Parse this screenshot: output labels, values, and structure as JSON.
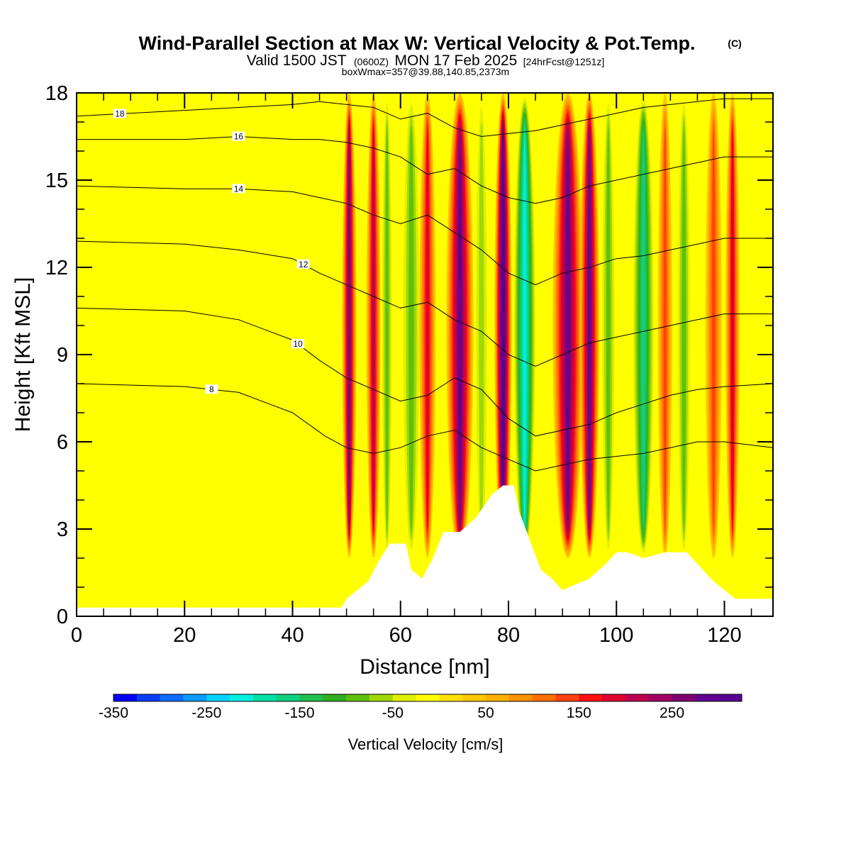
{
  "chart_data": {
    "type": "heatmap",
    "title": "Wind-Parallel Section at Max W: Vertical Velocity & Pot.Temp.",
    "title_suffix": "(C)",
    "subtitle": {
      "valid": "Valid 1500 JST",
      "zulu": "(0600Z)",
      "date": "MON 17 Feb 2025",
      "fcst": "[24hrFcst@1251z]"
    },
    "note": "boxWmax=357@39.88,140.85,2373m",
    "xlabel": "Distance [nm]",
    "ylabel": "Height [Kft MSL]",
    "xlim": [
      0,
      129
    ],
    "ylim": [
      0,
      18
    ],
    "xticks": [
      0,
      20,
      40,
      60,
      80,
      100,
      120
    ],
    "yticks": [
      0,
      3,
      6,
      9,
      12,
      15,
      18
    ],
    "colorbar": {
      "label": "Vertical Velocity [cm/s]",
      "ticks": [
        -350,
        -250,
        -150,
        -50,
        50,
        150,
        250
      ],
      "min": -350,
      "max": 325,
      "step": 25,
      "colors": [
        "#0000ff",
        "#0a3cff",
        "#0d6dff",
        "#0a9bff",
        "#00d2ff",
        "#00f0e0",
        "#00e0a8",
        "#10d080",
        "#20c050",
        "#30b020",
        "#60c010",
        "#a0d800",
        "#e0f000",
        "#ffff00",
        "#ffe000",
        "#ffc800",
        "#ffb000",
        "#ff9000",
        "#ff7000",
        "#ff4010",
        "#ff1010",
        "#e00030",
        "#c00050",
        "#a00060",
        "#800070",
        "#600090",
        "#5a0090"
      ]
    },
    "velocity_bands": [
      {
        "x": 50.5,
        "w": 250,
        "width": 1.3
      },
      {
        "x": 55,
        "w": 200,
        "width": 1.3
      },
      {
        "x": 57.5,
        "w": -100,
        "width": 1.2
      },
      {
        "x": 62,
        "w": -100,
        "width": 2
      },
      {
        "x": 65,
        "w": 175,
        "width": 1.5
      },
      {
        "x": 71,
        "w": 275,
        "width": 2.5
      },
      {
        "x": 75,
        "w": -75,
        "width": 1.5
      },
      {
        "x": 79,
        "w": 325,
        "width": 1.6
      },
      {
        "x": 83,
        "w": -225,
        "width": 2.2
      },
      {
        "x": 91,
        "w": 275,
        "width": 2.8
      },
      {
        "x": 95,
        "w": 275,
        "width": 1.8
      },
      {
        "x": 98.5,
        "w": -100,
        "width": 1.5
      },
      {
        "x": 105,
        "w": -175,
        "width": 2.2
      },
      {
        "x": 109,
        "w": 125,
        "width": 1.3
      },
      {
        "x": 112.5,
        "w": -100,
        "width": 1.5
      },
      {
        "x": 118,
        "w": 125,
        "width": 1.5
      },
      {
        "x": 121.5,
        "w": 175,
        "width": 1.3
      }
    ],
    "terrain": [
      [
        0,
        0.3
      ],
      [
        49,
        0.3
      ],
      [
        50,
        0.6
      ],
      [
        52,
        0.9
      ],
      [
        54,
        1.2
      ],
      [
        56,
        1.9
      ],
      [
        58,
        2.5
      ],
      [
        61,
        2.5
      ],
      [
        62,
        1.6
      ],
      [
        64,
        1.3
      ],
      [
        66,
        2.0
      ],
      [
        68,
        2.9
      ],
      [
        71,
        2.9
      ],
      [
        74,
        3.4
      ],
      [
        77,
        4.2
      ],
      [
        79,
        4.5
      ],
      [
        81,
        4.5
      ],
      [
        82,
        3.6
      ],
      [
        84,
        2.6
      ],
      [
        86,
        1.6
      ],
      [
        88,
        1.3
      ],
      [
        90,
        0.9
      ],
      [
        95,
        1.3
      ],
      [
        98,
        1.8
      ],
      [
        100,
        2.2
      ],
      [
        102,
        2.2
      ],
      [
        105,
        2.0
      ],
      [
        109,
        2.2
      ],
      [
        113,
        2.2
      ],
      [
        116,
        1.6
      ],
      [
        118,
        1.2
      ],
      [
        120,
        0.9
      ],
      [
        122,
        0.6
      ],
      [
        129,
        0.6
      ]
    ],
    "theta_contours": [
      {
        "level": 8,
        "label": "8",
        "label_x": 25,
        "points": [
          [
            0,
            8.0
          ],
          [
            20,
            7.9
          ],
          [
            30,
            7.7
          ],
          [
            40,
            7.0
          ],
          [
            46,
            6.2
          ],
          [
            50,
            5.8
          ],
          [
            55,
            5.6
          ],
          [
            60,
            5.8
          ],
          [
            65,
            6.2
          ],
          [
            70,
            6.4
          ],
          [
            75,
            5.8
          ],
          [
            80,
            5.4
          ],
          [
            85,
            5.0
          ],
          [
            90,
            5.2
          ],
          [
            95,
            5.4
          ],
          [
            100,
            5.5
          ],
          [
            105,
            5.6
          ],
          [
            110,
            5.8
          ],
          [
            115,
            6.0
          ],
          [
            120,
            6.0
          ],
          [
            129,
            5.8
          ]
        ]
      },
      {
        "level": 10,
        "label": "10",
        "label_x": 41,
        "points": [
          [
            0,
            10.6
          ],
          [
            20,
            10.5
          ],
          [
            30,
            10.2
          ],
          [
            40,
            9.5
          ],
          [
            45,
            8.8
          ],
          [
            50,
            8.2
          ],
          [
            55,
            7.8
          ],
          [
            60,
            7.4
          ],
          [
            65,
            7.6
          ],
          [
            70,
            8.2
          ],
          [
            75,
            7.8
          ],
          [
            80,
            6.8
          ],
          [
            85,
            6.2
          ],
          [
            90,
            6.4
          ],
          [
            95,
            6.6
          ],
          [
            100,
            7.0
          ],
          [
            105,
            7.3
          ],
          [
            110,
            7.6
          ],
          [
            115,
            7.8
          ],
          [
            120,
            7.9
          ],
          [
            129,
            8.0
          ]
        ]
      },
      {
        "level": 12,
        "label": "12",
        "label_x": 42,
        "points": [
          [
            0,
            12.9
          ],
          [
            20,
            12.8
          ],
          [
            30,
            12.6
          ],
          [
            40,
            12.3
          ],
          [
            45,
            11.8
          ],
          [
            50,
            11.4
          ],
          [
            55,
            11.0
          ],
          [
            60,
            10.6
          ],
          [
            65,
            10.8
          ],
          [
            70,
            10.2
          ],
          [
            75,
            9.8
          ],
          [
            80,
            9.0
          ],
          [
            85,
            8.6
          ],
          [
            90,
            9.0
          ],
          [
            95,
            9.4
          ],
          [
            100,
            9.6
          ],
          [
            105,
            9.8
          ],
          [
            110,
            10.0
          ],
          [
            115,
            10.2
          ],
          [
            120,
            10.4
          ],
          [
            129,
            10.4
          ]
        ]
      },
      {
        "level": 14,
        "label": "14",
        "label_x": 30,
        "points": [
          [
            0,
            14.8
          ],
          [
            20,
            14.7
          ],
          [
            30,
            14.7
          ],
          [
            40,
            14.6
          ],
          [
            45,
            14.4
          ],
          [
            50,
            14.2
          ],
          [
            55,
            13.8
          ],
          [
            60,
            13.5
          ],
          [
            65,
            13.8
          ],
          [
            70,
            13.2
          ],
          [
            75,
            12.6
          ],
          [
            80,
            11.8
          ],
          [
            85,
            11.4
          ],
          [
            90,
            11.8
          ],
          [
            95,
            12.0
          ],
          [
            100,
            12.3
          ],
          [
            105,
            12.4
          ],
          [
            110,
            12.6
          ],
          [
            115,
            12.8
          ],
          [
            120,
            13.0
          ],
          [
            129,
            13.0
          ]
        ]
      },
      {
        "level": 16,
        "label": "16",
        "label_x": 30,
        "points": [
          [
            0,
            16.4
          ],
          [
            20,
            16.4
          ],
          [
            30,
            16.5
          ],
          [
            40,
            16.4
          ],
          [
            45,
            16.4
          ],
          [
            50,
            16.3
          ],
          [
            55,
            16.1
          ],
          [
            60,
            15.8
          ],
          [
            65,
            15.2
          ],
          [
            70,
            15.4
          ],
          [
            75,
            14.8
          ],
          [
            80,
            14.4
          ],
          [
            85,
            14.2
          ],
          [
            90,
            14.4
          ],
          [
            95,
            14.8
          ],
          [
            100,
            15.0
          ],
          [
            105,
            15.2
          ],
          [
            110,
            15.4
          ],
          [
            115,
            15.6
          ],
          [
            120,
            15.8
          ],
          [
            129,
            15.8
          ]
        ]
      },
      {
        "level": 18,
        "label": "18",
        "label_x": 8,
        "points": [
          [
            0,
            17.2
          ],
          [
            20,
            17.4
          ],
          [
            30,
            17.5
          ],
          [
            40,
            17.6
          ],
          [
            45,
            17.7
          ],
          [
            50,
            17.6
          ],
          [
            55,
            17.5
          ],
          [
            60,
            17.1
          ],
          [
            65,
            17.3
          ],
          [
            70,
            16.8
          ],
          [
            75,
            16.5
          ],
          [
            80,
            16.6
          ],
          [
            85,
            16.7
          ],
          [
            90,
            16.9
          ],
          [
            95,
            17.1
          ],
          [
            100,
            17.3
          ],
          [
            105,
            17.5
          ],
          [
            110,
            17.6
          ],
          [
            115,
            17.7
          ],
          [
            120,
            17.8
          ],
          [
            129,
            17.8
          ]
        ]
      }
    ]
  }
}
